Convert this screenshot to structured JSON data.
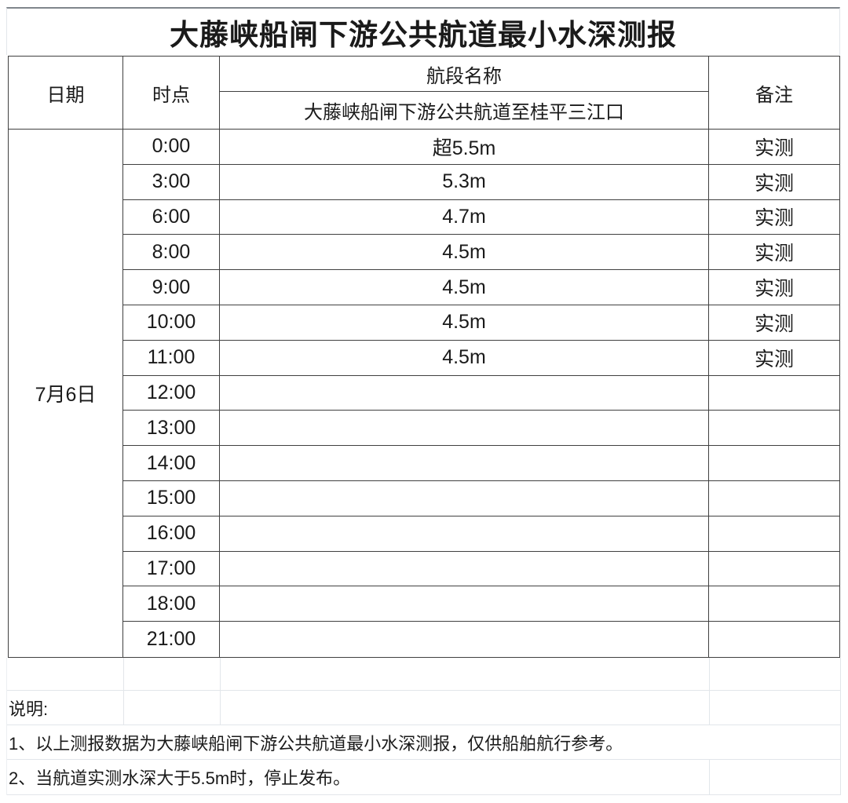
{
  "title": "大藤峡船闸下游公共航道最小水深测报",
  "table": {
    "headers": {
      "date": "日期",
      "time": "时点",
      "segment": "航段名称",
      "segment_sub": "大藤峡船闸下游公共航道至桂平三江口",
      "remark": "备注"
    },
    "date_value": "7月6日",
    "rows": [
      {
        "time": "0:00",
        "depth": "超5.5m",
        "remark": "实测"
      },
      {
        "time": "3:00",
        "depth": "5.3m",
        "remark": "实测"
      },
      {
        "time": "6:00",
        "depth": "4.7m",
        "remark": "实测"
      },
      {
        "time": "8:00",
        "depth": "4.5m",
        "remark": "实测"
      },
      {
        "time": "9:00",
        "depth": "4.5m",
        "remark": "实测"
      },
      {
        "time": "10:00",
        "depth": "4.5m",
        "remark": "实测"
      },
      {
        "time": "11:00",
        "depth": "4.5m",
        "remark": "实测"
      },
      {
        "time": "12:00",
        "depth": "",
        "remark": ""
      },
      {
        "time": "13:00",
        "depth": "",
        "remark": ""
      },
      {
        "time": "14:00",
        "depth": "",
        "remark": ""
      },
      {
        "time": "15:00",
        "depth": "",
        "remark": ""
      },
      {
        "time": "16:00",
        "depth": "",
        "remark": ""
      },
      {
        "time": "17:00",
        "depth": "",
        "remark": ""
      },
      {
        "time": "18:00",
        "depth": "",
        "remark": ""
      },
      {
        "time": "21:00",
        "depth": "",
        "remark": ""
      }
    ]
  },
  "notes": {
    "label": "说明:",
    "items": [
      "1、以上测报数据为大藤峡船闸下游公共航道最小水深测报，仅供船舶航行参考。",
      "2、当航道实测水深大于5.5m时，停止发布。"
    ]
  },
  "colors": {
    "border_dark": "#404040",
    "border_light": "#e2e6ea",
    "text": "#1a1a1a",
    "background": "#ffffff"
  }
}
